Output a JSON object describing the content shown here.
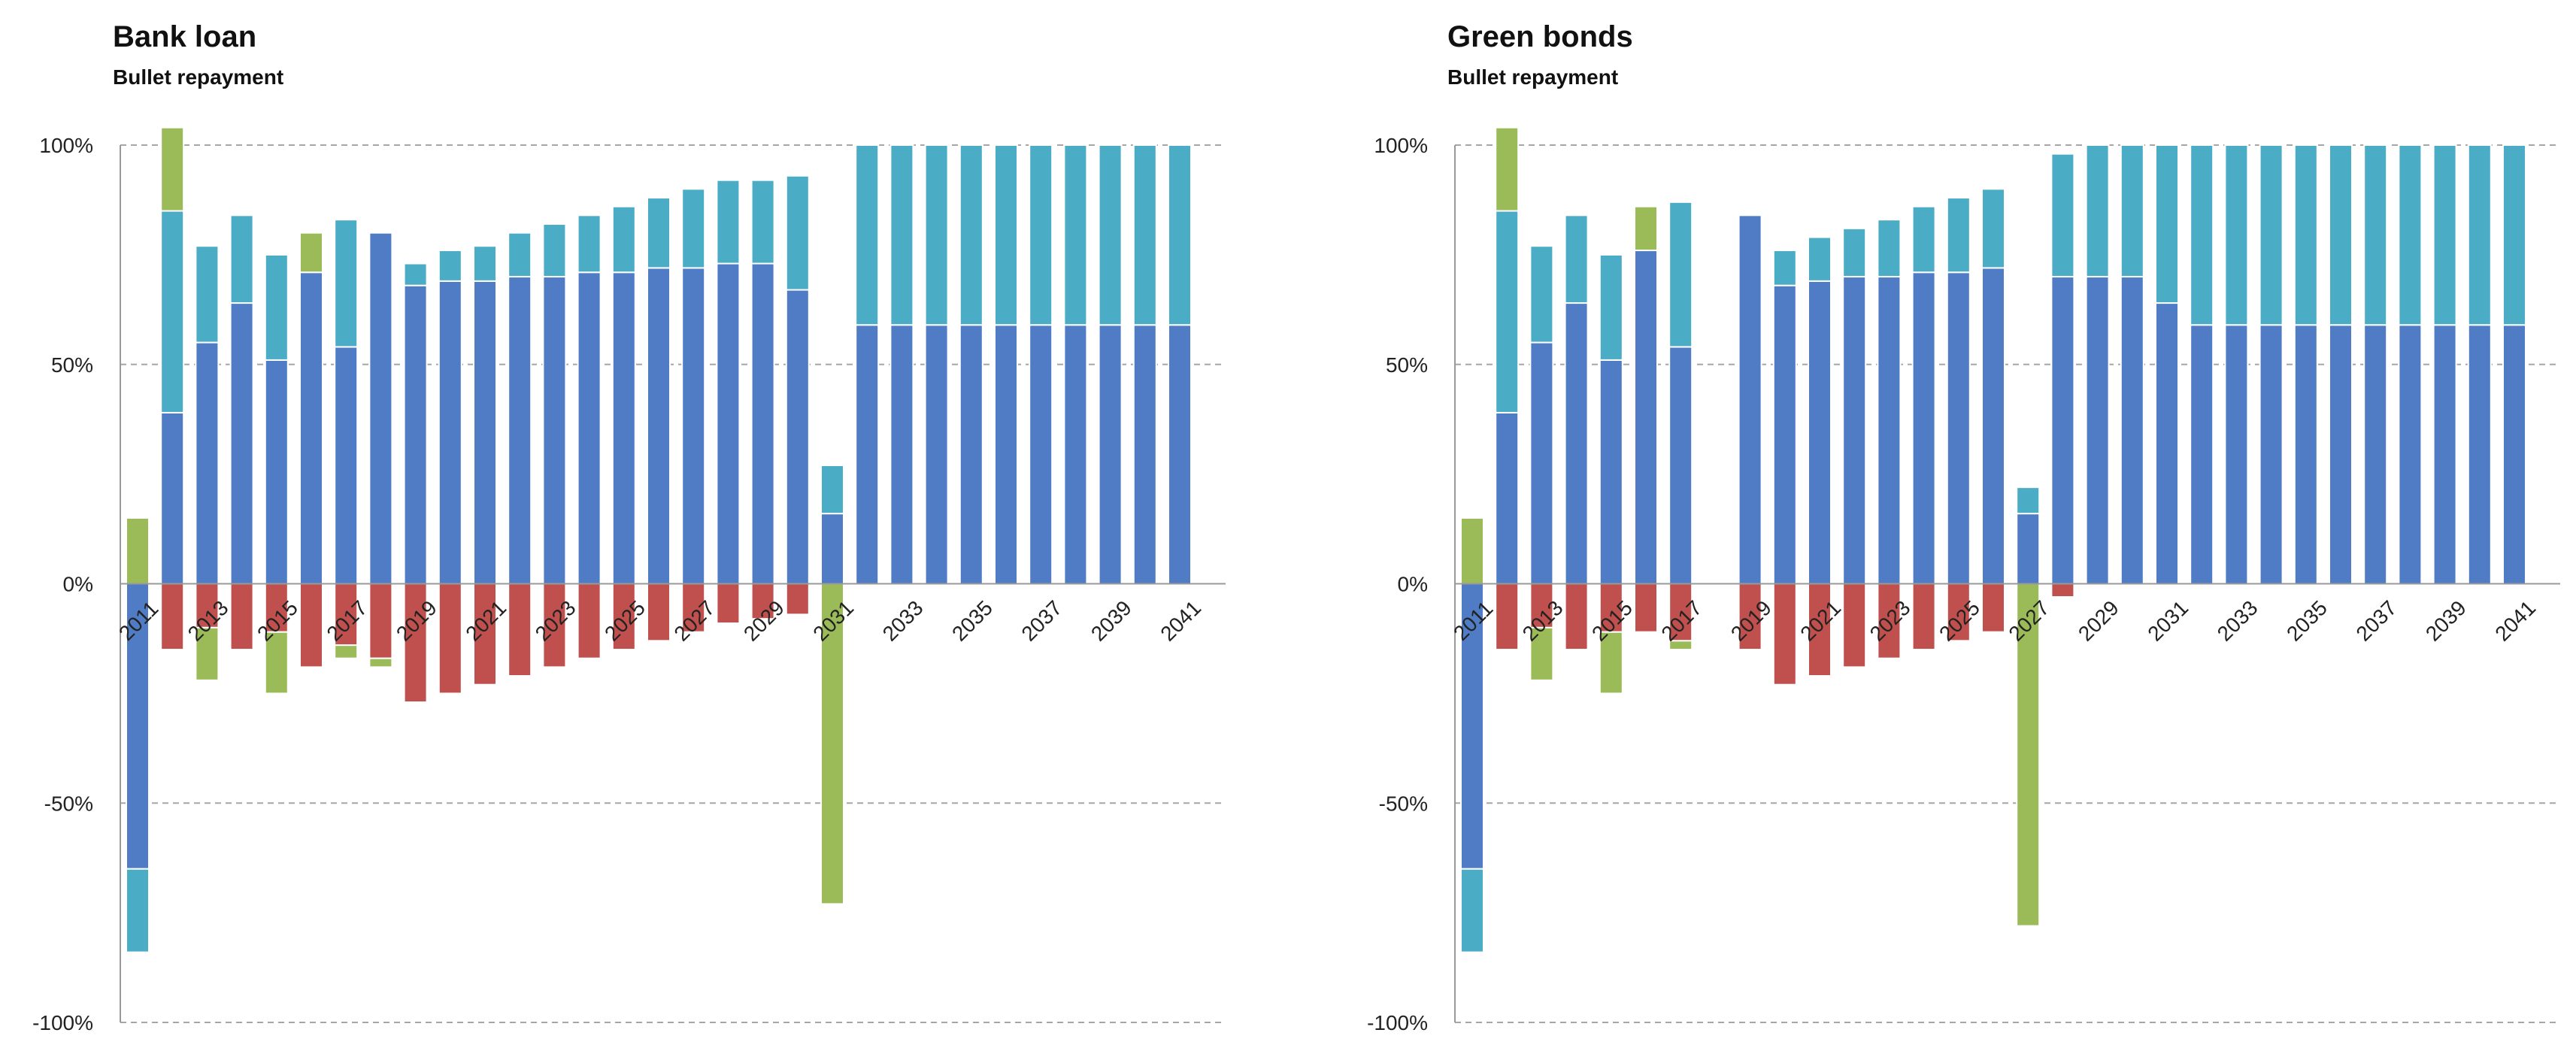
{
  "chart_data": [
    {
      "type": "bar",
      "stacked": true,
      "title": "Bank loan",
      "subtitle": "Bullet repayment",
      "xlabel": "",
      "ylabel": "",
      "ylim": [
        -100,
        100
      ],
      "ytick_labels": [
        "100%",
        "50%",
        "0%",
        "-50%",
        "-100%"
      ],
      "ytick_values": [
        100,
        50,
        0,
        -50,
        -100
      ],
      "grid": true,
      "categories": [
        "2011",
        "2012",
        "2013",
        "2014",
        "2015",
        "2016",
        "2017",
        "2018",
        "2019",
        "2020",
        "2021",
        "2022",
        "2023",
        "2024",
        "2025",
        "2026",
        "2027",
        "2028",
        "2029",
        "2030",
        "2031",
        "2032",
        "2033",
        "2034",
        "2035",
        "2036",
        "2037",
        "2038",
        "2039",
        "2040",
        "2041"
      ],
      "xtick_labels": [
        "2011",
        "",
        "2013",
        "",
        "2015",
        "",
        "2017",
        "",
        "2019",
        "",
        "2021",
        "",
        "2023",
        "",
        "2025",
        "",
        "2027",
        "",
        "2029",
        "",
        "2031",
        "",
        "2033",
        "",
        "2035",
        "",
        "2037",
        "",
        "2039",
        "",
        "2041"
      ],
      "colors": {
        "blue": "#4F7CC4",
        "cyan": "#4BACC6",
        "green": "#9BBB59",
        "red": "#C0504D"
      },
      "series": [
        {
          "name": "blue",
          "color": "#4F7CC4",
          "values": [
            -65,
            39,
            55,
            64,
            51,
            71,
            54,
            80,
            68,
            69,
            69,
            70,
            70,
            71,
            71,
            72,
            72,
            73,
            73,
            67,
            16,
            59,
            59,
            59,
            59,
            59,
            59,
            59,
            59,
            59,
            59
          ]
        },
        {
          "name": "cyan",
          "color": "#4BACC6",
          "values": [
            -19,
            46,
            22,
            20,
            24,
            0,
            29,
            0,
            5,
            7,
            8,
            10,
            12,
            13,
            15,
            16,
            18,
            19,
            19,
            26,
            11,
            41,
            41,
            41,
            41,
            41,
            41,
            41,
            41,
            41,
            41
          ]
        },
        {
          "name": "green_pos",
          "color": "#9BBB59",
          "values": [
            15,
            19,
            0,
            0,
            0,
            0,
            0,
            0,
            0,
            0,
            0,
            0,
            0,
            0,
            0,
            0,
            0,
            0,
            0,
            0,
            0,
            0,
            0,
            0,
            0,
            0,
            0,
            0,
            0,
            0,
            0
          ]
        },
        {
          "name": "green_top",
          "color": "#9BBB59",
          "values": [
            0,
            0,
            0,
            0,
            0,
            9,
            0,
            0,
            0,
            0,
            0,
            0,
            0,
            0,
            0,
            0,
            0,
            0,
            0,
            0,
            0,
            0,
            0,
            0,
            0,
            0,
            0,
            0,
            0,
            0,
            0
          ]
        },
        {
          "name": "red",
          "color": "#C0504D",
          "values": [
            0,
            -15,
            -10,
            -15,
            -11,
            -19,
            -14,
            -17,
            -27,
            -25,
            -23,
            -21,
            -19,
            -17,
            -15,
            -13,
            -11,
            -9,
            -8,
            -7,
            0,
            0,
            0,
            0,
            0,
            0,
            0,
            0,
            0,
            0,
            0
          ]
        },
        {
          "name": "green_neg",
          "color": "#9BBB59",
          "values": [
            0,
            0,
            -12,
            0,
            -14,
            0,
            -3,
            -2,
            0,
            0,
            0,
            0,
            0,
            0,
            0,
            0,
            0,
            0,
            0,
            0,
            -73,
            0,
            0,
            0,
            0,
            0,
            0,
            0,
            0,
            0,
            0
          ]
        }
      ]
    },
    {
      "type": "bar",
      "stacked": true,
      "title": "Green bonds",
      "subtitle": "Bullet repayment",
      "xlabel": "",
      "ylabel": "",
      "ylim": [
        -100,
        100
      ],
      "ytick_labels": [
        "100%",
        "50%",
        "0%",
        "-50%",
        "-100%"
      ],
      "ytick_values": [
        100,
        50,
        0,
        -50,
        -100
      ],
      "grid": true,
      "categories": [
        "2011",
        "2012",
        "2013",
        "2014",
        "2015",
        "2016",
        "2017",
        "2018",
        "2019",
        "2020",
        "2021",
        "2022",
        "2023",
        "2024",
        "2025",
        "2026",
        "2027",
        "2028",
        "2029",
        "2030",
        "2031",
        "2032",
        "2033",
        "2034",
        "2035",
        "2036",
        "2037",
        "2038",
        "2039",
        "2040",
        "2041"
      ],
      "xtick_labels": [
        "2011",
        "",
        "2013",
        "",
        "2015",
        "",
        "2017",
        "",
        "2019",
        "",
        "2021",
        "",
        "2023",
        "",
        "2025",
        "",
        "2027",
        "",
        "2029",
        "",
        "2031",
        "",
        "2033",
        "",
        "2035",
        "",
        "2037",
        "",
        "2039",
        "",
        "2041"
      ],
      "colors": {
        "blue": "#4F7CC4",
        "cyan": "#4BACC6",
        "green": "#9BBB59",
        "red": "#C0504D"
      },
      "series": [
        {
          "name": "blue",
          "color": "#4F7CC4",
          "values": [
            -65,
            39,
            55,
            64,
            51,
            76,
            54,
            0,
            84,
            68,
            69,
            70,
            70,
            71,
            71,
            72,
            16,
            70,
            70,
            70,
            64,
            59,
            59,
            59,
            59,
            59,
            59,
            59,
            59,
            59,
            59
          ]
        },
        {
          "name": "cyan",
          "color": "#4BACC6",
          "values": [
            -19,
            46,
            22,
            20,
            24,
            0,
            33,
            0,
            0,
            8,
            10,
            11,
            13,
            15,
            17,
            18,
            6,
            28,
            30,
            30,
            36,
            41,
            41,
            41,
            41,
            41,
            41,
            41,
            41,
            41,
            41
          ]
        },
        {
          "name": "green_pos",
          "color": "#9BBB59",
          "values": [
            15,
            19,
            0,
            0,
            0,
            0,
            0,
            0,
            0,
            0,
            0,
            0,
            0,
            0,
            0,
            0,
            0,
            0,
            0,
            0,
            0,
            0,
            0,
            0,
            0,
            0,
            0,
            0,
            0,
            0,
            0
          ]
        },
        {
          "name": "green_top",
          "color": "#9BBB59",
          "values": [
            0,
            0,
            0,
            0,
            0,
            10,
            0,
            0,
            0,
            0,
            0,
            0,
            0,
            0,
            0,
            0,
            0,
            0,
            0,
            0,
            0,
            0,
            0,
            0,
            0,
            0,
            0,
            0,
            0,
            0,
            0
          ]
        },
        {
          "name": "red",
          "color": "#C0504D",
          "values": [
            0,
            -15,
            -10,
            -15,
            -11,
            -11,
            -13,
            0,
            -15,
            -23,
            -21,
            -19,
            -17,
            -15,
            -13,
            -11,
            0,
            -3,
            0,
            0,
            0,
            0,
            0,
            0,
            0,
            0,
            0,
            0,
            0,
            0,
            0
          ]
        },
        {
          "name": "green_neg",
          "color": "#9BBB59",
          "values": [
            0,
            0,
            -12,
            0,
            -14,
            0,
            -2,
            0,
            0,
            0,
            0,
            0,
            0,
            0,
            0,
            0,
            -78,
            0,
            0,
            0,
            0,
            0,
            0,
            0,
            0,
            0,
            0,
            0,
            0,
            0,
            0
          ]
        }
      ]
    }
  ]
}
